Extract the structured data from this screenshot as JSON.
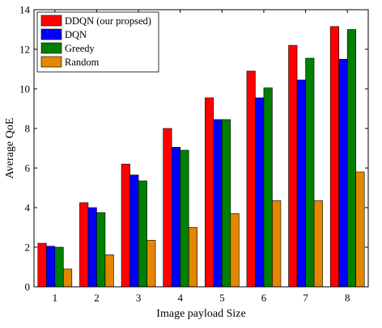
{
  "chart_data": {
    "type": "bar",
    "categories": [
      "1",
      "2",
      "3",
      "4",
      "5",
      "6",
      "7",
      "8"
    ],
    "series": [
      {
        "name": "DDQN (our propsed)",
        "color": "#ff0000",
        "values": [
          2.2,
          4.25,
          6.2,
          8.0,
          9.55,
          10.9,
          12.2,
          13.15
        ]
      },
      {
        "name": "DQN",
        "color": "#0000ff",
        "values": [
          2.05,
          4.0,
          5.65,
          7.05,
          8.45,
          9.55,
          10.45,
          11.5
        ]
      },
      {
        "name": "Greedy",
        "color": "#008000",
        "values": [
          2.0,
          3.75,
          5.35,
          6.9,
          8.45,
          10.05,
          11.55,
          13.0
        ]
      },
      {
        "name": "Random",
        "color": "#e38600",
        "values": [
          0.9,
          1.62,
          2.35,
          3.0,
          3.7,
          4.35,
          4.35,
          5.8
        ]
      }
    ],
    "xlabel": "Image payload Size",
    "ylabel": "Average QoE",
    "ylim": [
      0,
      14
    ],
    "yticks": [
      0,
      2,
      4,
      6,
      8,
      10,
      12,
      14
    ],
    "grid": false,
    "legend": "top-left"
  }
}
